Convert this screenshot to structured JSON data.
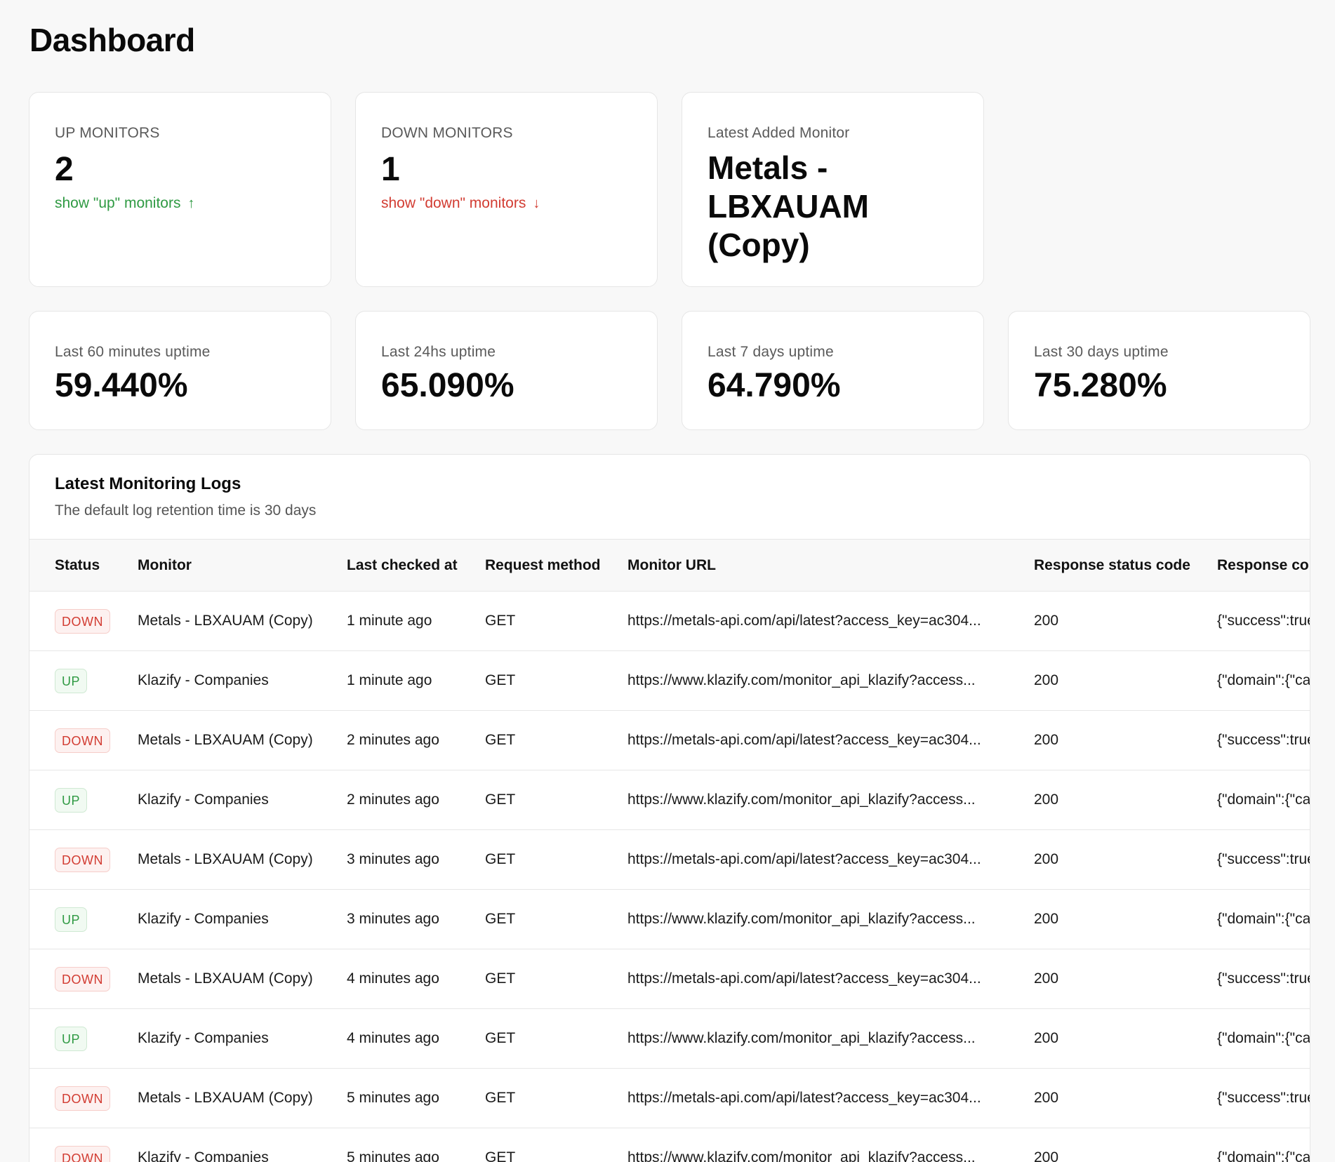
{
  "page": {
    "title": "Dashboard"
  },
  "summary": {
    "up": {
      "label": "UP MONITORS",
      "count": "2",
      "link_label": "show \"up\" monitors",
      "link_icon": "arrow-up-icon"
    },
    "down": {
      "label": "DOWN MONITORS",
      "count": "1",
      "link_label": "show \"down\" monitors",
      "link_icon": "arrow-down-icon"
    },
    "latest": {
      "label": "Latest Added Monitor",
      "name": "Metals - LBXAUAM (Copy)"
    }
  },
  "uptime": [
    {
      "label": "Last 60 minutes uptime",
      "value": "59.440%"
    },
    {
      "label": "Last 24hs uptime",
      "value": "65.090%"
    },
    {
      "label": "Last 7 days uptime",
      "value": "64.790%"
    },
    {
      "label": "Last 30 days uptime",
      "value": "75.280%"
    }
  ],
  "logs": {
    "title": "Latest Monitoring Logs",
    "subtitle": "The default log retention time is 30 days",
    "columns": [
      "Status",
      "Monitor",
      "Last checked at",
      "Request method",
      "Monitor URL",
      "Response status code",
      "Response content"
    ],
    "rows": [
      {
        "status": "DOWN",
        "monitor": "Metals - LBXAUAM (Copy)",
        "checked": "1 minute ago",
        "method": "GET",
        "url": "https://metals-api.com/api/latest?access_key=ac304...",
        "code": "200",
        "content": "{\"success\":true"
      },
      {
        "status": "UP",
        "monitor": "Klazify - Companies",
        "checked": "1 minute ago",
        "method": "GET",
        "url": "https://www.klazify.com/monitor_api_klazify?access...",
        "code": "200",
        "content": "{\"domain\":{\"categories"
      },
      {
        "status": "DOWN",
        "monitor": "Metals - LBXAUAM (Copy)",
        "checked": "2 minutes ago",
        "method": "GET",
        "url": "https://metals-api.com/api/latest?access_key=ac304...",
        "code": "200",
        "content": "{\"success\":true"
      },
      {
        "status": "UP",
        "monitor": "Klazify - Companies",
        "checked": "2 minutes ago",
        "method": "GET",
        "url": "https://www.klazify.com/monitor_api_klazify?access...",
        "code": "200",
        "content": "{\"domain\":{\"categories"
      },
      {
        "status": "DOWN",
        "monitor": "Metals - LBXAUAM (Copy)",
        "checked": "3 minutes ago",
        "method": "GET",
        "url": "https://metals-api.com/api/latest?access_key=ac304...",
        "code": "200",
        "content": "{\"success\":true"
      },
      {
        "status": "UP",
        "monitor": "Klazify - Companies",
        "checked": "3 minutes ago",
        "method": "GET",
        "url": "https://www.klazify.com/monitor_api_klazify?access...",
        "code": "200",
        "content": "{\"domain\":{\"categories"
      },
      {
        "status": "DOWN",
        "monitor": "Metals - LBXAUAM (Copy)",
        "checked": "4 minutes ago",
        "method": "GET",
        "url": "https://metals-api.com/api/latest?access_key=ac304...",
        "code": "200",
        "content": "{\"success\":true"
      },
      {
        "status": "UP",
        "monitor": "Klazify - Companies",
        "checked": "4 minutes ago",
        "method": "GET",
        "url": "https://www.klazify.com/monitor_api_klazify?access...",
        "code": "200",
        "content": "{\"domain\":{\"categories"
      },
      {
        "status": "DOWN",
        "monitor": "Metals - LBXAUAM (Copy)",
        "checked": "5 minutes ago",
        "method": "GET",
        "url": "https://metals-api.com/api/latest?access_key=ac304...",
        "code": "200",
        "content": "{\"success\":true"
      },
      {
        "status": "DOWN",
        "monitor": "Klazify - Companies",
        "checked": "5 minutes ago",
        "method": "GET",
        "url": "https://www.klazify.com/monitor_api_klazify?access...",
        "code": "200",
        "content": "{\"domain\":{\"categories"
      }
    ]
  },
  "colors": {
    "up": "#2f9a43",
    "down": "#d23c32",
    "background": "#f8f8f8",
    "card": "#ffffff"
  }
}
